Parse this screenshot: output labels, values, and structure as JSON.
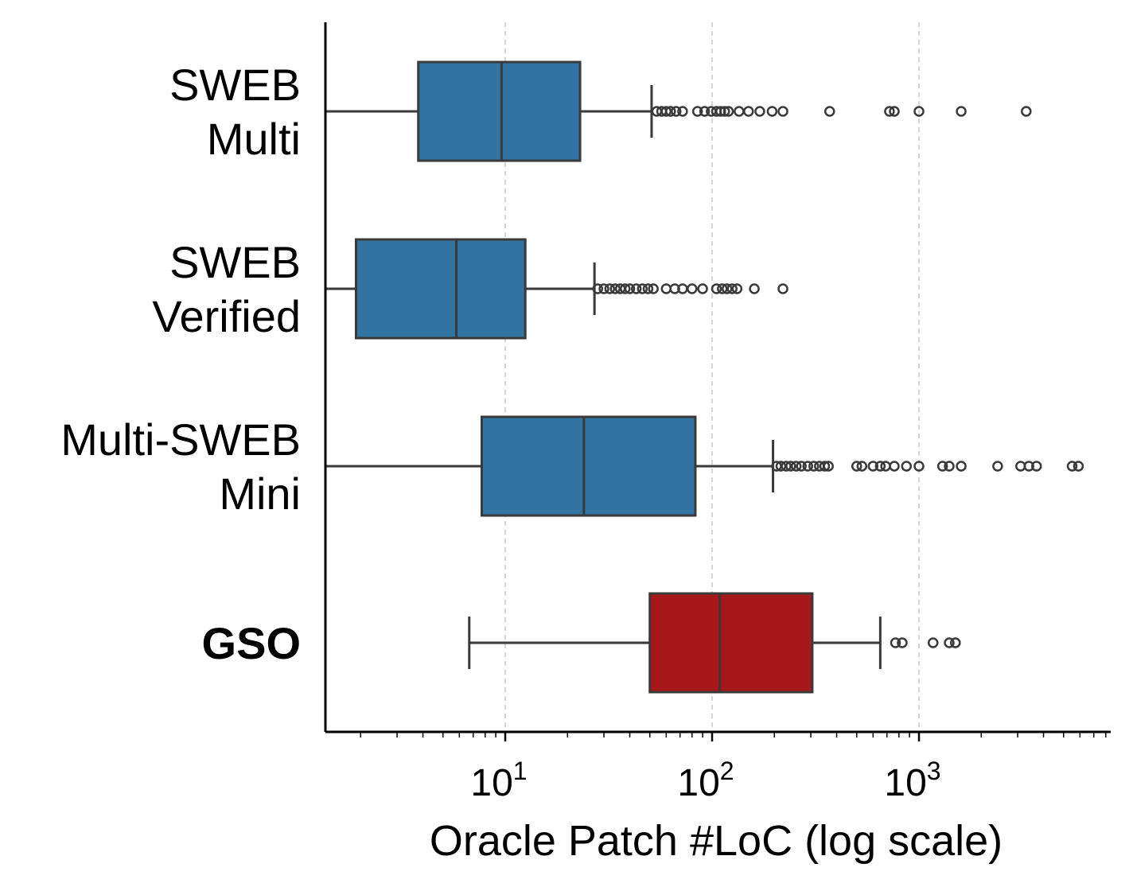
{
  "chart_data": {
    "type": "boxplot",
    "orientation": "horizontal",
    "xlabel": "Oracle Patch #LoC (log scale)",
    "xscale": "log",
    "xlim": [
      1.3,
      8500
    ],
    "x_ticks": [
      {
        "value": 10,
        "base": "10",
        "exp": "1"
      },
      {
        "value": 100,
        "base": "10",
        "exp": "2"
      },
      {
        "value": 1000,
        "base": "10",
        "exp": "3"
      }
    ],
    "grid": "x-major-dashed",
    "colors": {
      "default": "#3274a1",
      "highlight": "#a8181a",
      "line": "#3a3a3a"
    },
    "series": [
      {
        "name_lines": [
          "SWEB",
          "Multi"
        ],
        "bold": false,
        "color": "#3274a1",
        "whisker_low": 1.3,
        "q1": 3.8,
        "median": 9.6,
        "q3": 23,
        "whisker_high": 51,
        "outliers": [
          54,
          57,
          60,
          63,
          67,
          72,
          85,
          92,
          99,
          105,
          110,
          115,
          120,
          135,
          150,
          170,
          195,
          220,
          370,
          720,
          760,
          1000,
          1600,
          3300
        ]
      },
      {
        "name_lines": [
          "SWEB",
          "Verified"
        ],
        "bold": false,
        "color": "#3274a1",
        "whisker_low": 1.3,
        "q1": 1.9,
        "median": 5.8,
        "q3": 12.5,
        "whisker_high": 27,
        "outliers": [
          28,
          30,
          32,
          34,
          36,
          38,
          40,
          43,
          46,
          49,
          52,
          60,
          66,
          72,
          80,
          90,
          105,
          112,
          118,
          125,
          132,
          160,
          220
        ]
      },
      {
        "name_lines": [
          "Multi-SWEB",
          "Mini"
        ],
        "bold": false,
        "color": "#3274a1",
        "whisker_low": 1.3,
        "q1": 7.7,
        "median": 24,
        "q3": 83,
        "whisker_high": 197,
        "outliers": [
          205,
          215,
          228,
          240,
          255,
          270,
          290,
          310,
          330,
          350,
          365,
          500,
          530,
          600,
          650,
          690,
          760,
          870,
          1000,
          1300,
          1400,
          1600,
          2400,
          3100,
          3400,
          3700,
          5500,
          5900
        ]
      },
      {
        "name_lines": [
          "GSO"
        ],
        "bold": true,
        "color": "#a8181a",
        "whisker_low": 6.7,
        "q1": 50,
        "median": 109,
        "q3": 305,
        "whisker_high": 650,
        "outliers": [
          770,
          830,
          1170,
          1400,
          1500
        ]
      }
    ]
  }
}
